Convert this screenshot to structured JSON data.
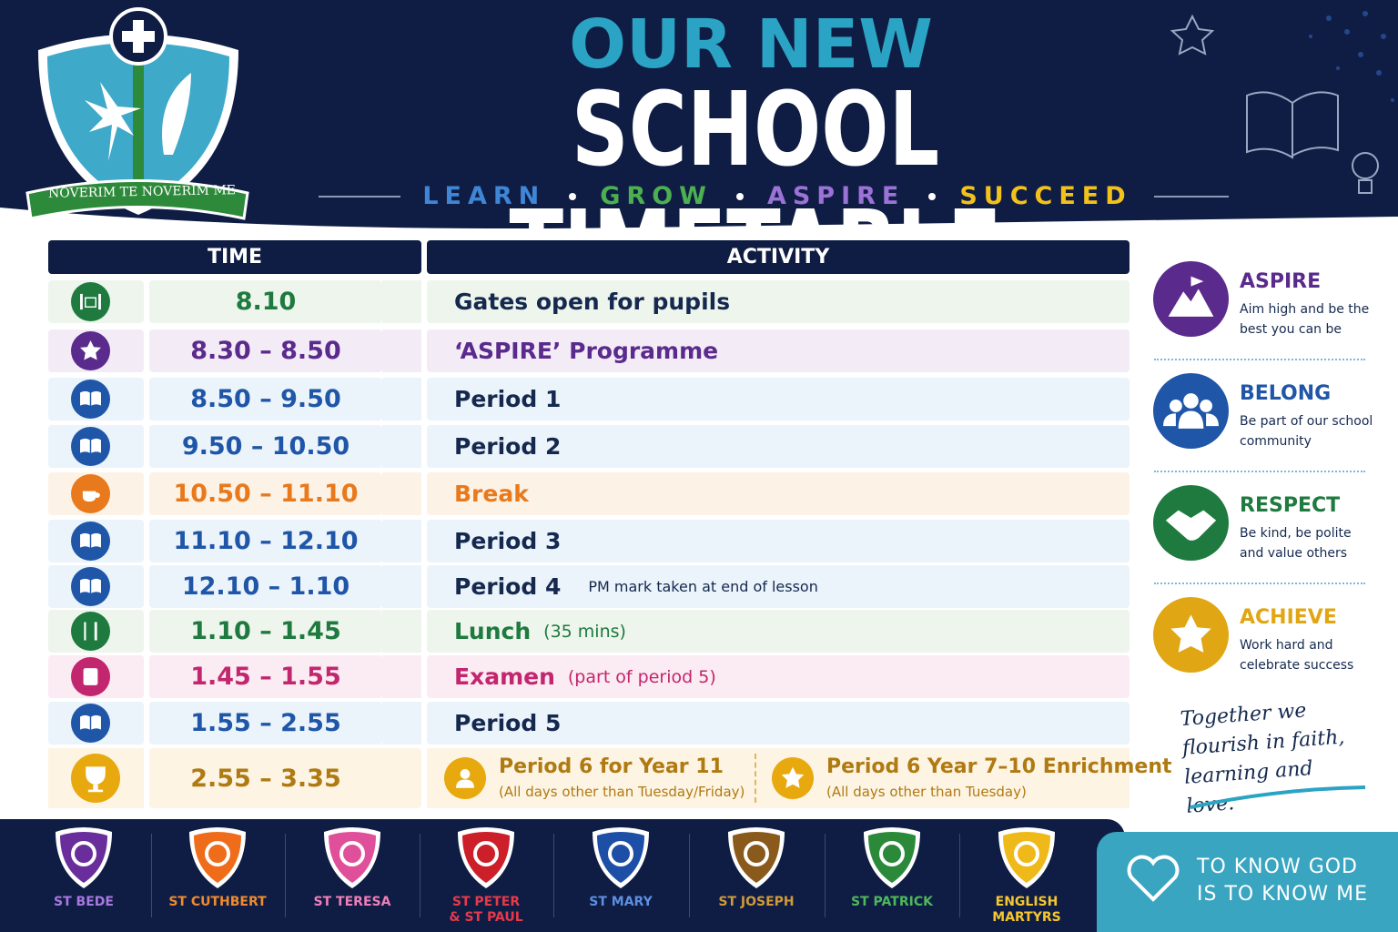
{
  "header": {
    "title_line1": "OUR NEW",
    "title_line2": "SCHOOL TIMETABLE",
    "motto_words": [
      {
        "text": "LEARN",
        "color": "#3f86d6"
      },
      {
        "text": "GROW",
        "color": "#4caf50"
      },
      {
        "text": "ASPIRE",
        "color": "#9b72d6"
      },
      {
        "text": "SUCCEED",
        "color": "#f2c21b"
      }
    ],
    "crest_motto": "NOVERIM TE NOVERIM ME"
  },
  "table": {
    "columns": [
      "TIME",
      "ACTIVITY"
    ],
    "rows": [
      {
        "time": "8.10",
        "activity": "Gates open for pupils",
        "color": "#1e7a3e",
        "text_color": "#15294f",
        "bg": "#edf5ec"
      },
      {
        "time": "8.30 – 8.50",
        "activity": "‘ASPIRE’ Programme",
        "color": "#5a2a8c",
        "text_color": "#5a2a8c",
        "bg": "#f3ecf7"
      },
      {
        "time": "8.50 – 9.50",
        "activity": "Period 1",
        "color": "#1f56a8",
        "text_color": "#15294f",
        "bg": "#ebf3fb"
      },
      {
        "time": "9.50 – 10.50",
        "activity": "Period 2",
        "color": "#1f56a8",
        "text_color": "#15294f",
        "bg": "#ebf3fb"
      },
      {
        "time": "10.50 – 11.10",
        "activity": "Break",
        "color": "#e8791c",
        "text_color": "#e8791c",
        "bg": "#fdf2e6"
      },
      {
        "time": "11.10 – 12.10",
        "activity": "Period 3",
        "color": "#1f56a8",
        "text_color": "#15294f",
        "bg": "#ebf3fb"
      },
      {
        "time": "12.10 – 1.10",
        "activity": "Period 4",
        "note": "PM mark taken at end of lesson",
        "color": "#1f56a8",
        "text_color": "#15294f",
        "bg": "#ebf3fb"
      },
      {
        "time": "1.10 – 1.45",
        "activity": "Lunch",
        "note": "(35 mins)",
        "color": "#1e7a3e",
        "text_color": "#1e7a3e",
        "bg": "#edf5ec"
      },
      {
        "time": "1.45 – 1.55",
        "activity": "Examen",
        "note": "(part of period 5)",
        "color": "#c2266e",
        "text_color": "#c2266e",
        "bg": "#fbebf2"
      },
      {
        "time": "1.55 – 2.55",
        "activity": "Period 5",
        "color": "#1f56a8",
        "text_color": "#15294f",
        "bg": "#ebf3fb"
      }
    ],
    "final_row": {
      "time": "2.55 – 3.35",
      "color": "#b07a12",
      "bg": "#fdf4e3",
      "options": [
        {
          "title": "Period 6 for Year 11",
          "note": "(All days other than Tuesday/Friday)"
        },
        {
          "title": "Period 6 Year 7–10 Enrichment",
          "note": "(All days other than Tuesday)"
        }
      ]
    }
  },
  "values": [
    {
      "title": "ASPIRE",
      "text": "Aim high and be the best you can be",
      "color": "#5a2a8c"
    },
    {
      "title": "BELONG",
      "text": "Be part of our school community",
      "color": "#1f56a8"
    },
    {
      "title": "RESPECT",
      "text": "Be kind, be polite and value others",
      "color": "#1e7a3e"
    },
    {
      "title": "ACHIEVE",
      "text": "Work hard and celebrate success",
      "color": "#e0a614"
    }
  ],
  "tagline": "Together we flourish in faith, learning and love.",
  "houses": [
    {
      "name": "ST BEDE",
      "color": "#6a2e9c",
      "text_color": "#a877e0"
    },
    {
      "name": "ST CUTHBERT",
      "color": "#ef6c1a",
      "text_color": "#f08a2e"
    },
    {
      "name": "ST TERESA",
      "color": "#e0509a",
      "text_color": "#ee7fb8"
    },
    {
      "name": "ST PETER & ST PAUL",
      "color": "#cc1f2a",
      "text_color": "#e6394a"
    },
    {
      "name": "ST MARY",
      "color": "#1d4fa6",
      "text_color": "#5c8fe0"
    },
    {
      "name": "ST JOSEPH",
      "color": "#8a5a1c",
      "text_color": "#d09a3a"
    },
    {
      "name": "ST PATRICK",
      "color": "#2a8a3a",
      "text_color": "#4cb85a"
    },
    {
      "name": "ENGLISH MARTYRS",
      "color": "#f0b91a",
      "text_color": "#f5c630"
    }
  ],
  "footer_motto": "TO KNOW GOD IS TO KNOW ME"
}
